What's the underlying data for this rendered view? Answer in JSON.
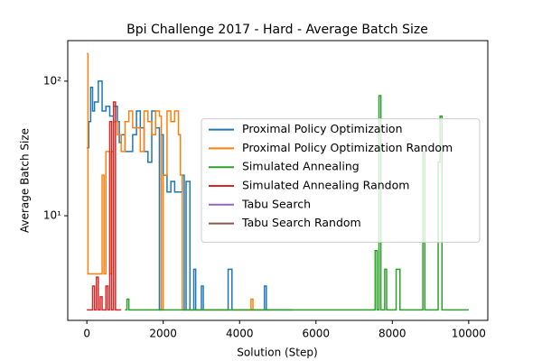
{
  "chart_data": {
    "type": "line",
    "drawstyle": "steps-post",
    "title": "Bpi Challenge 2017 - Hard - Average Batch Size",
    "x_label": "Solution (Step)",
    "y_label": "Average Batch Size",
    "xlim": [
      -500,
      10500
    ],
    "xticks": [
      0,
      2000,
      4000,
      6000,
      8000,
      10000
    ],
    "ylim": [
      1.67,
      200
    ],
    "y_scale": "log",
    "yticks": [
      {
        "value": 10,
        "label": "10¹"
      },
      {
        "value": 100,
        "label": "10²"
      }
    ],
    "legend": "center right",
    "series": [
      {
        "name": "Proximal Policy Optimization",
        "color": "#1f77b4",
        "x": [
          0,
          50,
          100,
          150,
          200,
          300,
          400,
          500,
          600,
          700,
          800,
          850,
          900,
          1000,
          1200,
          1300,
          1400,
          1500,
          1600,
          1700,
          1800,
          1900,
          1950,
          2000,
          2100,
          2200,
          2300,
          2500,
          2550,
          2600,
          2700,
          2800,
          2850,
          3000,
          3050,
          3100,
          3700,
          3800,
          4600,
          4650,
          4700,
          5400
        ],
        "values": [
          32,
          50,
          90,
          60,
          70,
          100,
          60,
          65,
          55,
          65,
          50,
          35,
          40,
          30,
          40,
          60,
          45,
          30,
          25,
          60,
          45,
          2,
          40,
          20,
          15,
          18,
          15,
          20,
          2,
          18,
          2,
          4,
          2,
          3,
          2,
          2,
          4,
          2,
          2,
          3,
          2,
          2
        ]
      },
      {
        "name": "Proximal Policy Optimization Random",
        "color": "#ff7f0e",
        "x": [
          0,
          30,
          400,
          450,
          500,
          600,
          650,
          700,
          800,
          900,
          1000,
          1100,
          1200,
          1400,
          1500,
          1600,
          1700,
          1800,
          1900,
          1950,
          2000,
          2100,
          2200,
          2300,
          2400,
          2450,
          2500,
          4300,
          4350,
          4800
        ],
        "values": [
          160,
          3.7,
          20,
          3.7,
          30,
          3.7,
          30,
          50,
          40,
          30,
          50,
          60,
          45,
          30,
          60,
          50,
          40,
          60,
          55,
          2,
          20,
          60,
          50,
          60,
          40,
          20,
          2,
          2.4,
          2,
          2
        ]
      },
      {
        "name": "Simulated Annealing",
        "color": "#2ca02c",
        "x": [
          1000,
          1050,
          1100,
          7500,
          7550,
          7600,
          7650,
          7700,
          7800,
          7850,
          8100,
          8200,
          8800,
          8850,
          9200,
          9250,
          9300,
          10000
        ],
        "values": [
          2,
          2.4,
          2,
          2,
          5.5,
          2,
          78,
          2,
          4,
          2,
          4,
          2,
          30,
          2,
          25,
          55,
          2,
          2
        ]
      },
      {
        "name": "Simulated Annealing Random",
        "color": "#d62728",
        "x": [
          0,
          100,
          150,
          200,
          250,
          300,
          350,
          400,
          500,
          550,
          600,
          650,
          700,
          750,
          900
        ],
        "values": [
          2,
          2,
          3,
          2,
          3.5,
          2,
          2.5,
          2,
          3,
          2,
          50,
          2,
          70,
          2,
          2
        ]
      },
      {
        "name": "Tabu Search",
        "color": "#9467bd",
        "x": [],
        "values": []
      },
      {
        "name": "Tabu Search Random",
        "color": "#8c564b",
        "x": [],
        "values": []
      }
    ]
  }
}
